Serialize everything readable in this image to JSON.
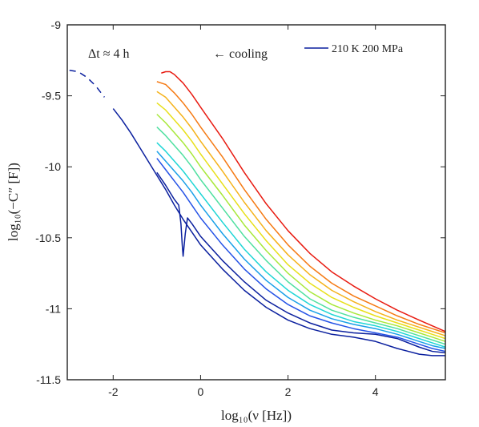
{
  "chart_data": {
    "type": "line",
    "xlabel": "log₁₀(ν [Hz])",
    "ylabel": "log₁₀(−C″ [F])",
    "xlim": [
      -3.05,
      5.6
    ],
    "ylim": [
      -11.5,
      -9
    ],
    "xticks": [
      -2,
      0,
      2,
      4
    ],
    "xtick_labels": [
      "-2",
      "0",
      "2",
      "4"
    ],
    "yticks": [
      -9,
      -9.5,
      -10,
      -10.5,
      -11,
      -11.5
    ],
    "ytick_labels": [
      "-9",
      "-9.5",
      "-10",
      "-10.5",
      "-11",
      "-11.5"
    ],
    "grid": false,
    "legend": {
      "position": "top-right",
      "entries": [
        {
          "label": "210 K 200 MPa",
          "color": "#0a1f9e"
        }
      ]
    },
    "annotations": {
      "dt": "Δt ≈ 4 h",
      "cooling": "← cooling"
    },
    "series": [
      {
        "color": "#0a1f9e",
        "x": [
          -3.0,
          -2.8,
          -2.6,
          -2.4,
          -2.2,
          -2.0,
          -1.8,
          -1.6,
          -1.4,
          -1.2,
          -1.0,
          -0.8,
          -0.6,
          -0.4,
          -0.2,
          0,
          0.5,
          1,
          1.5,
          2,
          2.5,
          3,
          3.5,
          4,
          4.5,
          5,
          5.3,
          5.6
        ],
        "y": [
          -9.32,
          -9.33,
          -9.37,
          -9.43,
          -9.51,
          -9.59,
          -9.67,
          -9.76,
          -9.86,
          -9.96,
          -10.06,
          -10.16,
          -10.27,
          -10.37,
          -10.46,
          -10.55,
          -10.72,
          -10.87,
          -10.99,
          -11.08,
          -11.14,
          -11.18,
          -11.2,
          -11.23,
          -11.28,
          -11.32,
          -11.33,
          -11.33
        ],
        "dashed_until": -2.2
      },
      {
        "color": "#0a1f9e",
        "x": [
          -1.0,
          -0.8,
          -0.7,
          -0.6,
          -0.55,
          -0.5,
          -0.45,
          -0.42,
          -0.4,
          -0.35,
          -0.3,
          -0.25,
          -0.2,
          0,
          0.5,
          1,
          1.5,
          2,
          2.5,
          3,
          3.5,
          4,
          4.5,
          5,
          5.3,
          5.6
        ],
        "y": [
          -10.04,
          -10.13,
          -10.18,
          -10.23,
          -10.25,
          -10.27,
          -10.4,
          -10.55,
          -10.63,
          -10.47,
          -10.36,
          -10.38,
          -10.4,
          -10.49,
          -10.66,
          -10.81,
          -10.94,
          -11.03,
          -11.1,
          -11.15,
          -11.17,
          -11.18,
          -11.21,
          -11.27,
          -11.3,
          -11.31
        ]
      },
      {
        "color": "#2452e6",
        "x": [
          -1.0,
          -0.8,
          -0.6,
          -0.4,
          -0.2,
          0,
          0.5,
          1,
          1.5,
          2,
          2.5,
          3,
          3.5,
          4,
          4.5,
          5,
          5.3,
          5.6
        ],
        "y": [
          -9.94,
          -10.02,
          -10.1,
          -10.18,
          -10.27,
          -10.36,
          -10.55,
          -10.72,
          -10.86,
          -10.97,
          -11.05,
          -11.1,
          -11.14,
          -11.17,
          -11.2,
          -11.25,
          -11.28,
          -11.3
        ]
      },
      {
        "color": "#19a0e8",
        "x": [
          -1.0,
          -0.8,
          -0.6,
          -0.4,
          -0.2,
          0,
          0.5,
          1,
          1.5,
          2,
          2.5,
          3,
          3.5,
          4,
          4.5,
          5,
          5.3,
          5.6
        ],
        "y": [
          -9.89,
          -9.96,
          -10.03,
          -10.1,
          -10.18,
          -10.27,
          -10.47,
          -10.65,
          -10.8,
          -10.92,
          -11.01,
          -11.07,
          -11.11,
          -11.14,
          -11.18,
          -11.23,
          -11.26,
          -11.28
        ]
      },
      {
        "color": "#1fd6d6",
        "x": [
          -1.0,
          -0.8,
          -0.6,
          -0.4,
          -0.2,
          0,
          0.5,
          1,
          1.5,
          2,
          2.5,
          3,
          3.5,
          4,
          4.5,
          5,
          5.3,
          5.6
        ],
        "y": [
          -9.83,
          -9.89,
          -9.96,
          -10.03,
          -10.11,
          -10.19,
          -10.39,
          -10.58,
          -10.74,
          -10.87,
          -10.97,
          -11.04,
          -11.09,
          -11.12,
          -11.16,
          -11.21,
          -11.24,
          -11.27
        ]
      },
      {
        "color": "#4fe0a0",
        "x": [
          -1.0,
          -0.8,
          -0.6,
          -0.4,
          -0.2,
          0,
          0.5,
          1,
          1.5,
          2,
          2.5,
          3,
          3.5,
          4,
          4.5,
          5,
          5.3,
          5.6
        ],
        "y": [
          -9.72,
          -9.78,
          -9.85,
          -9.92,
          -10.0,
          -10.09,
          -10.29,
          -10.49,
          -10.66,
          -10.81,
          -10.93,
          -11.01,
          -11.06,
          -11.1,
          -11.14,
          -11.19,
          -11.22,
          -11.25
        ]
      },
      {
        "color": "#a8e83a",
        "x": [
          -1.0,
          -0.8,
          -0.6,
          -0.4,
          -0.2,
          0,
          0.5,
          1,
          1.5,
          2,
          2.5,
          3,
          3.5,
          4,
          4.5,
          5,
          5.3,
          5.6
        ],
        "y": [
          -9.63,
          -9.69,
          -9.76,
          -9.83,
          -9.91,
          -10.0,
          -10.2,
          -10.41,
          -10.59,
          -10.75,
          -10.88,
          -10.97,
          -11.03,
          -11.08,
          -11.12,
          -11.17,
          -11.2,
          -11.23
        ]
      },
      {
        "color": "#e8e01a",
        "x": [
          -1.0,
          -0.8,
          -0.6,
          -0.4,
          -0.2,
          0,
          0.5,
          1,
          1.5,
          2,
          2.5,
          3,
          3.5,
          4,
          4.5,
          5,
          5.3,
          5.6
        ],
        "y": [
          -9.55,
          -9.6,
          -9.67,
          -9.74,
          -9.82,
          -9.91,
          -10.12,
          -10.33,
          -10.52,
          -10.69,
          -10.82,
          -10.92,
          -10.99,
          -11.05,
          -11.1,
          -11.15,
          -11.18,
          -11.21
        ]
      },
      {
        "color": "#f5b21a",
        "x": [
          -1.0,
          -0.8,
          -0.6,
          -0.4,
          -0.2,
          0,
          0.5,
          1,
          1.5,
          2,
          2.5,
          3,
          3.5,
          4,
          4.5,
          5,
          5.3,
          5.6
        ],
        "y": [
          -9.47,
          -9.51,
          -9.58,
          -9.65,
          -9.73,
          -9.82,
          -10.03,
          -10.25,
          -10.45,
          -10.62,
          -10.76,
          -10.87,
          -10.95,
          -11.02,
          -11.08,
          -11.13,
          -11.16,
          -11.19
        ]
      },
      {
        "color": "#f57a14",
        "x": [
          -1.0,
          -0.8,
          -0.6,
          -0.4,
          -0.2,
          0,
          0.5,
          1,
          1.5,
          2,
          2.5,
          3,
          3.5,
          4,
          4.5,
          5,
          5.3,
          5.6
        ],
        "y": [
          -9.4,
          -9.42,
          -9.48,
          -9.55,
          -9.63,
          -9.72,
          -9.93,
          -10.16,
          -10.37,
          -10.55,
          -10.7,
          -10.82,
          -10.91,
          -10.98,
          -11.05,
          -11.11,
          -11.14,
          -11.17
        ]
      },
      {
        "color": "#e81a10",
        "x": [
          -0.9,
          -0.8,
          -0.7,
          -0.6,
          -0.4,
          -0.2,
          0,
          0.5,
          1,
          1.5,
          2,
          2.5,
          3,
          3.5,
          4,
          4.5,
          5,
          5.3,
          5.6
        ],
        "y": [
          -9.34,
          -9.33,
          -9.33,
          -9.35,
          -9.41,
          -9.49,
          -9.58,
          -9.8,
          -10.04,
          -10.26,
          -10.45,
          -10.61,
          -10.74,
          -10.84,
          -10.93,
          -11.01,
          -11.08,
          -11.12,
          -11.16
        ]
      }
    ]
  }
}
